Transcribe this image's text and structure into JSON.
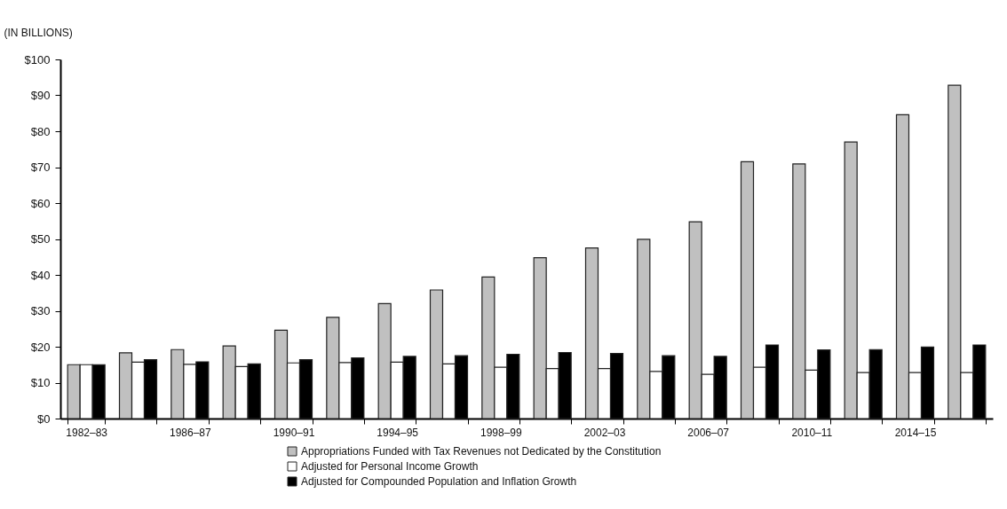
{
  "chart_data": {
    "type": "bar",
    "ylabel": "(IN BILLIONS)",
    "categories": [
      "1982–83",
      null,
      "1986–87",
      null,
      "1990–91",
      null,
      "1994–95",
      null,
      "1998–99",
      null,
      "2002–03",
      null,
      "2006–07",
      null,
      "2010–11",
      null,
      "2014–15",
      null
    ],
    "series": [
      {
        "name": "Appropriations Funded with Tax Revenues not Dedicated by the Constitution",
        "color": "#c0c0c0",
        "values": [
          15,
          18.3,
          19.2,
          20.2,
          24.6,
          28.2,
          32,
          35.8,
          39.4,
          44.8,
          47.5,
          49.9,
          54.8,
          71.5,
          70.9,
          77,
          84.6,
          92.8
        ]
      },
      {
        "name": "Adjusted for Personal Income Growth",
        "color": "#ffffff",
        "values": [
          15,
          15.7,
          15.1,
          14.5,
          15.5,
          15.6,
          15.7,
          15.2,
          14.3,
          13.9,
          13.9,
          13.1,
          12.3,
          14.3,
          13.5,
          12.8,
          12.8,
          12.8
        ]
      },
      {
        "name": "Adjusted for Compounded Population and Inflation Growth",
        "color": "#000000",
        "values": [
          15,
          16.4,
          15.8,
          15.2,
          16.4,
          16.9,
          17.3,
          17.5,
          17.9,
          18.4,
          18.1,
          17.5,
          17.3,
          20.5,
          19.1,
          19.2,
          19.9,
          20.5
        ]
      }
    ],
    "ylim": [
      0,
      100
    ],
    "yticks": [
      {
        "value": 0,
        "label": "$0"
      },
      {
        "value": 10,
        "label": "$10"
      },
      {
        "value": 20,
        "label": "$20"
      },
      {
        "value": 30,
        "label": "$30"
      },
      {
        "value": 40,
        "label": "$40"
      },
      {
        "value": 50,
        "label": "$50"
      },
      {
        "value": 60,
        "label": "$60"
      },
      {
        "value": 70,
        "label": "$70"
      },
      {
        "value": 80,
        "label": "$80"
      },
      {
        "value": 90,
        "label": "$90"
      },
      {
        "value": 100,
        "label": "$100"
      }
    ],
    "grid": false,
    "legend": "bottom"
  }
}
